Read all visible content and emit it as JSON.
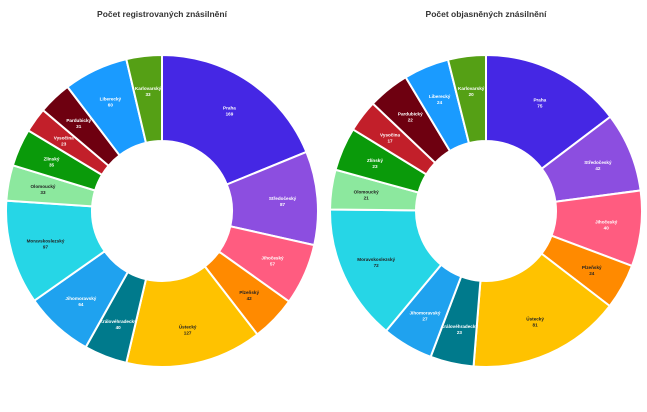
{
  "chart_data": [
    {
      "type": "donut",
      "title": "Počet registrovaných znásilnění",
      "categories": [
        "Praha",
        "Středočeský",
        "Jihočeský",
        "Plzeňský",
        "Ústecký",
        "Královéhradecký",
        "Jihomoravský",
        "Moravskoslezský",
        "Olomoucký",
        "Zlínský",
        "Vysočina",
        "Pardubický",
        "Liberecký",
        "Karlovarský"
      ],
      "values": [
        169,
        87,
        57,
        42,
        127,
        40,
        64,
        97,
        33,
        35,
        23,
        31,
        60,
        33
      ],
      "colors": [
        "#4527e4",
        "#8c4ee0",
        "#ff5c80",
        "#ff8a00",
        "#ffc200",
        "#007a8c",
        "#1fa2ef",
        "#26d6e6",
        "#8ce89e",
        "#0a9a0a",
        "#c21f2a",
        "#6e0010",
        "#1a9bff",
        "#55a015"
      ],
      "label_colors": [
        "#ffffff",
        "#ffffff",
        "#ffffff",
        "#222222",
        "#222222",
        "#ffffff",
        "#ffffff",
        "#222222",
        "#222222",
        "#ffffff",
        "#ffffff",
        "#ffffff",
        "#ffffff",
        "#ffffff"
      ]
    },
    {
      "type": "donut",
      "title": "Počet objasněných znásilnění",
      "categories": [
        "Praha",
        "Středočeský",
        "Jihočeský",
        "Plzeňský",
        "Ústecký",
        "Královéhradecký",
        "Jihomoravský",
        "Moravskoslezský",
        "Olomoucký",
        "Zlínský",
        "Vysočina",
        "Pardubický",
        "Liberecký",
        "Karlovarský"
      ],
      "values": [
        75,
        42,
        40,
        24,
        81,
        23,
        27,
        72,
        21,
        23,
        17,
        22,
        24,
        20
      ],
      "colors": [
        "#4527e4",
        "#8c4ee0",
        "#ff5c80",
        "#ff8a00",
        "#ffc200",
        "#007a8c",
        "#1fa2ef",
        "#26d6e6",
        "#8ce89e",
        "#0a9a0a",
        "#c21f2a",
        "#6e0010",
        "#1a9bff",
        "#55a015"
      ],
      "label_colors": [
        "#ffffff",
        "#ffffff",
        "#ffffff",
        "#222222",
        "#222222",
        "#ffffff",
        "#ffffff",
        "#222222",
        "#222222",
        "#ffffff",
        "#ffffff",
        "#ffffff",
        "#ffffff",
        "#ffffff"
      ]
    }
  ]
}
